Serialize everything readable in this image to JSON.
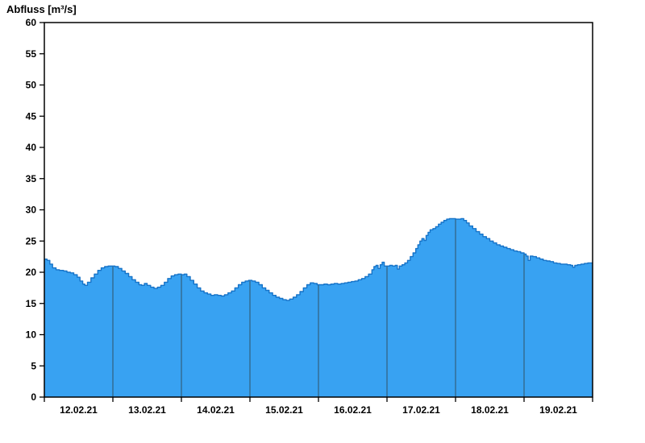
{
  "chart_data": {
    "type": "area",
    "title": "Abfluss [m³/s]",
    "ylabel": "Abfluss [m³/s]",
    "xlabel": "",
    "ylim": [
      0,
      60
    ],
    "ytick_step": 5,
    "x_range_days": [
      0,
      8
    ],
    "x_day_labels": [
      "12.02.21",
      "13.02.21",
      "14.02.21",
      "15.02.21",
      "16.02.21",
      "17.02.21",
      "18.02.21",
      "19.02.21"
    ],
    "legend": "none",
    "grid": "vertical-day-separators",
    "colors": {
      "fill": "#38a2f2",
      "line": "#1673c8",
      "separator": "#33607f",
      "axis": "#000000",
      "background": "#ffffff"
    },
    "series": [
      {
        "name": "Abfluss",
        "unit": "m³/s",
        "points": [
          [
            0.0,
            22.1
          ],
          [
            0.04,
            21.9
          ],
          [
            0.08,
            21.3
          ],
          [
            0.12,
            20.7
          ],
          [
            0.17,
            20.4
          ],
          [
            0.22,
            20.3
          ],
          [
            0.28,
            20.2
          ],
          [
            0.33,
            20.0
          ],
          [
            0.38,
            19.9
          ],
          [
            0.43,
            19.6
          ],
          [
            0.48,
            19.2
          ],
          [
            0.52,
            18.6
          ],
          [
            0.56,
            18.1
          ],
          [
            0.59,
            17.9
          ],
          [
            0.63,
            18.4
          ],
          [
            0.68,
            19.1
          ],
          [
            0.73,
            19.7
          ],
          [
            0.78,
            20.3
          ],
          [
            0.83,
            20.7
          ],
          [
            0.88,
            20.9
          ],
          [
            0.93,
            21.0
          ],
          [
            0.98,
            21.0
          ],
          [
            1.03,
            20.9
          ],
          [
            1.08,
            20.6
          ],
          [
            1.13,
            20.2
          ],
          [
            1.18,
            19.8
          ],
          [
            1.23,
            19.3
          ],
          [
            1.28,
            18.8
          ],
          [
            1.33,
            18.4
          ],
          [
            1.38,
            18.0
          ],
          [
            1.42,
            17.9
          ],
          [
            1.46,
            18.2
          ],
          [
            1.5,
            17.9
          ],
          [
            1.55,
            17.6
          ],
          [
            1.6,
            17.4
          ],
          [
            1.65,
            17.6
          ],
          [
            1.7,
            17.9
          ],
          [
            1.75,
            18.4
          ],
          [
            1.8,
            19.0
          ],
          [
            1.85,
            19.4
          ],
          [
            1.9,
            19.6
          ],
          [
            1.95,
            19.7
          ],
          [
            2.0,
            19.6
          ],
          [
            2.04,
            19.7
          ],
          [
            2.08,
            19.3
          ],
          [
            2.13,
            18.7
          ],
          [
            2.18,
            18.1
          ],
          [
            2.23,
            17.5
          ],
          [
            2.28,
            17.0
          ],
          [
            2.33,
            16.7
          ],
          [
            2.38,
            16.5
          ],
          [
            2.43,
            16.3
          ],
          [
            2.48,
            16.4
          ],
          [
            2.53,
            16.3
          ],
          [
            2.58,
            16.2
          ],
          [
            2.63,
            16.4
          ],
          [
            2.68,
            16.7
          ],
          [
            2.73,
            17.0
          ],
          [
            2.78,
            17.5
          ],
          [
            2.83,
            18.0
          ],
          [
            2.88,
            18.4
          ],
          [
            2.93,
            18.6
          ],
          [
            2.98,
            18.7
          ],
          [
            3.03,
            18.6
          ],
          [
            3.08,
            18.4
          ],
          [
            3.13,
            18.0
          ],
          [
            3.18,
            17.5
          ],
          [
            3.23,
            17.1
          ],
          [
            3.28,
            16.7
          ],
          [
            3.33,
            16.3
          ],
          [
            3.38,
            16.0
          ],
          [
            3.43,
            15.8
          ],
          [
            3.48,
            15.6
          ],
          [
            3.53,
            15.5
          ],
          [
            3.58,
            15.7
          ],
          [
            3.63,
            16.0
          ],
          [
            3.68,
            16.4
          ],
          [
            3.73,
            16.9
          ],
          [
            3.78,
            17.5
          ],
          [
            3.83,
            18.0
          ],
          [
            3.88,
            18.3
          ],
          [
            3.93,
            18.2
          ],
          [
            3.98,
            18.0
          ],
          [
            4.03,
            18.0
          ],
          [
            4.08,
            18.1
          ],
          [
            4.13,
            18.0
          ],
          [
            4.18,
            18.1
          ],
          [
            4.23,
            18.2
          ],
          [
            4.28,
            18.1
          ],
          [
            4.33,
            18.2
          ],
          [
            4.38,
            18.3
          ],
          [
            4.43,
            18.4
          ],
          [
            4.48,
            18.5
          ],
          [
            4.53,
            18.6
          ],
          [
            4.58,
            18.8
          ],
          [
            4.63,
            19.0
          ],
          [
            4.68,
            19.3
          ],
          [
            4.73,
            19.7
          ],
          [
            4.78,
            20.4
          ],
          [
            4.81,
            20.9
          ],
          [
            4.84,
            21.1
          ],
          [
            4.87,
            20.6
          ],
          [
            4.9,
            21.2
          ],
          [
            4.93,
            21.6
          ],
          [
            4.96,
            21.0
          ],
          [
            5.0,
            21.0
          ],
          [
            5.04,
            21.1
          ],
          [
            5.08,
            21.0
          ],
          [
            5.12,
            21.1
          ],
          [
            5.15,
            20.5
          ],
          [
            5.18,
            21.0
          ],
          [
            5.22,
            21.2
          ],
          [
            5.26,
            21.5
          ],
          [
            5.3,
            21.9
          ],
          [
            5.34,
            22.5
          ],
          [
            5.38,
            23.1
          ],
          [
            5.42,
            23.8
          ],
          [
            5.45,
            24.4
          ],
          [
            5.48,
            25.0
          ],
          [
            5.51,
            25.4
          ],
          [
            5.54,
            25.1
          ],
          [
            5.57,
            25.9
          ],
          [
            5.6,
            26.4
          ],
          [
            5.63,
            26.8
          ],
          [
            5.67,
            27.0
          ],
          [
            5.71,
            27.3
          ],
          [
            5.75,
            27.7
          ],
          [
            5.79,
            28.0
          ],
          [
            5.83,
            28.3
          ],
          [
            5.87,
            28.5
          ],
          [
            5.91,
            28.6
          ],
          [
            5.95,
            28.6
          ],
          [
            6.0,
            28.5
          ],
          [
            6.04,
            28.5
          ],
          [
            6.08,
            28.6
          ],
          [
            6.12,
            28.3
          ],
          [
            6.16,
            27.9
          ],
          [
            6.2,
            27.4
          ],
          [
            6.25,
            27.0
          ],
          [
            6.3,
            26.5
          ],
          [
            6.35,
            26.1
          ],
          [
            6.4,
            25.7
          ],
          [
            6.45,
            25.4
          ],
          [
            6.5,
            25.0
          ],
          [
            6.55,
            24.7
          ],
          [
            6.6,
            24.4
          ],
          [
            6.65,
            24.2
          ],
          [
            6.7,
            24.0
          ],
          [
            6.75,
            23.8
          ],
          [
            6.8,
            23.6
          ],
          [
            6.85,
            23.4
          ],
          [
            6.9,
            23.3
          ],
          [
            6.95,
            23.1
          ],
          [
            7.0,
            22.9
          ],
          [
            7.03,
            22.6
          ],
          [
            7.06,
            21.9
          ],
          [
            7.09,
            22.6
          ],
          [
            7.13,
            22.5
          ],
          [
            7.18,
            22.3
          ],
          [
            7.23,
            22.1
          ],
          [
            7.28,
            21.9
          ],
          [
            7.33,
            21.8
          ],
          [
            7.38,
            21.7
          ],
          [
            7.43,
            21.5
          ],
          [
            7.48,
            21.4
          ],
          [
            7.53,
            21.3
          ],
          [
            7.58,
            21.3
          ],
          [
            7.63,
            21.2
          ],
          [
            7.68,
            21.1
          ],
          [
            7.71,
            20.8
          ],
          [
            7.74,
            21.1
          ],
          [
            7.78,
            21.2
          ],
          [
            7.83,
            21.3
          ],
          [
            7.88,
            21.4
          ],
          [
            7.93,
            21.5
          ],
          [
            8.0,
            21.5
          ]
        ]
      }
    ]
  }
}
